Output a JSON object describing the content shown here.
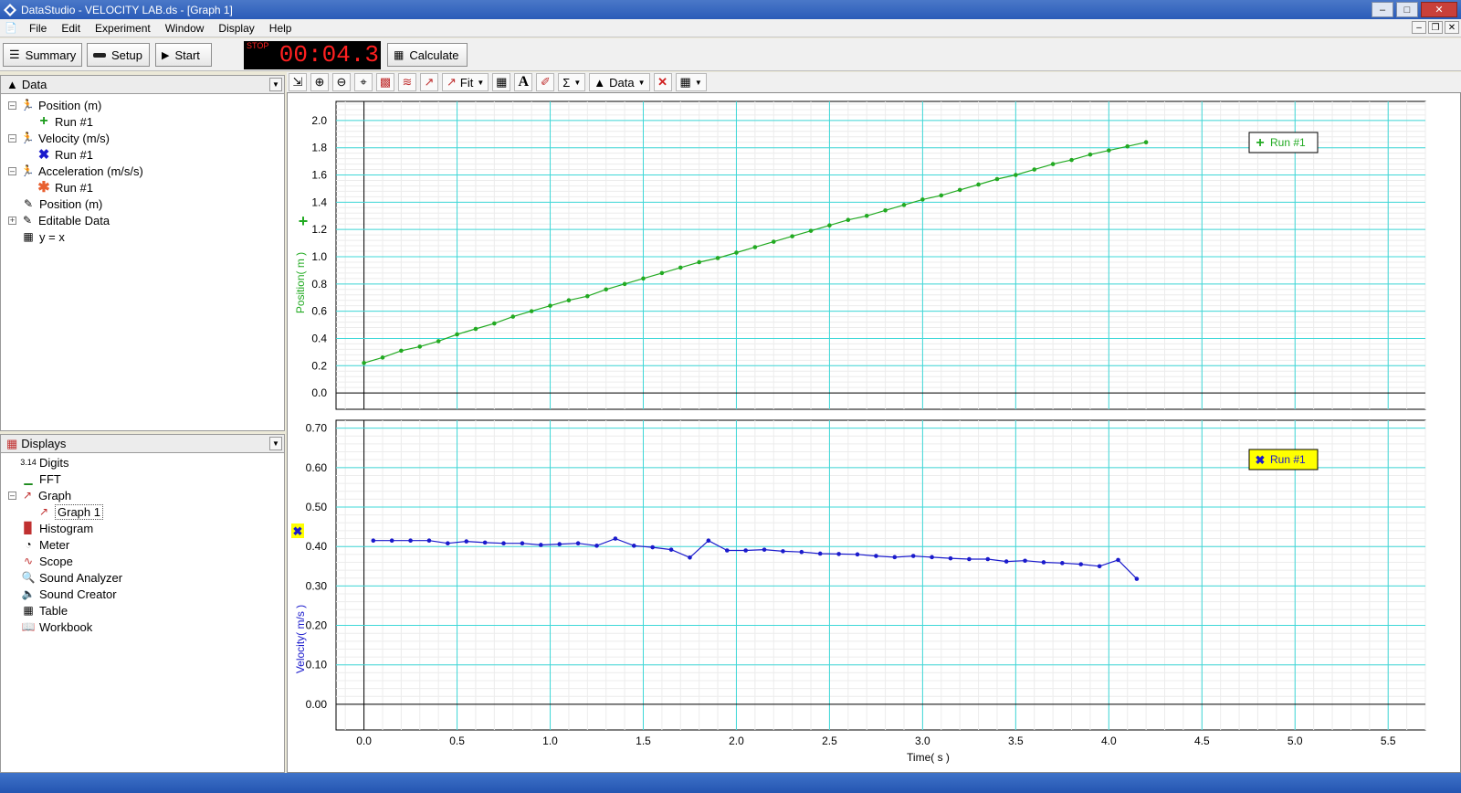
{
  "window": {
    "title": "DataStudio - VELOCITY LAB.ds - [Graph 1]"
  },
  "menu": [
    "File",
    "Edit",
    "Experiment",
    "Window",
    "Display",
    "Help"
  ],
  "toolbar": {
    "summary": "Summary",
    "setup": "Setup",
    "start": "Start",
    "timer_label": "STOP",
    "timer": "00:04.3",
    "calculate": "Calculate"
  },
  "data_panel": {
    "title": "Data",
    "items": [
      {
        "label": "Position (m)",
        "icon": "motion-sensor-icon"
      },
      {
        "label": "Run #1",
        "icon": "green-plus-icon"
      },
      {
        "label": "Velocity (m/s)",
        "icon": "motion-sensor-icon"
      },
      {
        "label": "Run #1",
        "icon": "blue-x-icon"
      },
      {
        "label": "Acceleration (m/s/s)",
        "icon": "motion-sensor-icon"
      },
      {
        "label": "Run #1",
        "icon": "orange-asterisk-icon"
      },
      {
        "label": "Position (m)",
        "icon": "pencil-icon"
      },
      {
        "label": "Editable Data",
        "icon": "pencil-icon"
      },
      {
        "label": "y = x",
        "icon": "calculator-icon"
      }
    ]
  },
  "displays_panel": {
    "title": "Displays",
    "items": [
      {
        "label": "Digits",
        "icon": "digits-icon"
      },
      {
        "label": "FFT",
        "icon": "fft-icon"
      },
      {
        "label": "Graph",
        "icon": "graph-icon"
      },
      {
        "label": "Graph 1",
        "icon": "graph-icon"
      },
      {
        "label": "Histogram",
        "icon": "histogram-icon"
      },
      {
        "label": "Meter",
        "icon": "meter-icon"
      },
      {
        "label": "Scope",
        "icon": "scope-icon"
      },
      {
        "label": "Sound Analyzer",
        "icon": "sound-analyzer-icon"
      },
      {
        "label": "Sound Creator",
        "icon": "speaker-icon"
      },
      {
        "label": "Table",
        "icon": "table-icon"
      },
      {
        "label": "Workbook",
        "icon": "workbook-icon"
      }
    ]
  },
  "graph_toolbar": {
    "fit": "Fit",
    "data": "Data"
  },
  "colors": {
    "position": "#22aa22",
    "velocity": "#1a1acc",
    "grid": "#3fd8d8",
    "legend_velocity_bg": "#ffff00"
  },
  "chart_data": [
    {
      "type": "line",
      "ylabel": "Position( m )",
      "xlabel": "",
      "xlim": [
        -0.15,
        5.7
      ],
      "ylim": [
        -0.12,
        2.14
      ],
      "xticks": [
        0.0,
        0.5,
        1.0,
        1.5,
        2.0,
        2.5,
        3.0,
        3.5,
        4.0,
        4.5,
        5.0,
        5.5
      ],
      "yticks": [
        "0.0",
        "0.2",
        "0.4",
        "0.6",
        "0.8",
        "1.0",
        "1.2",
        "1.4",
        "1.6",
        "1.8",
        "2.0"
      ],
      "legend": "Run #1",
      "series": [
        {
          "name": "Run #1",
          "x": [
            0.0,
            0.1,
            0.2,
            0.3,
            0.4,
            0.5,
            0.6,
            0.7,
            0.8,
            0.9,
            1.0,
            1.1,
            1.2,
            1.3,
            1.4,
            1.5,
            1.6,
            1.7,
            1.8,
            1.9,
            2.0,
            2.1,
            2.2,
            2.3,
            2.4,
            2.5,
            2.6,
            2.7,
            2.8,
            2.9,
            3.0,
            3.1,
            3.2,
            3.3,
            3.4,
            3.5,
            3.6,
            3.7,
            3.8,
            3.9,
            4.0,
            4.1,
            4.2
          ],
          "y": [
            0.22,
            0.26,
            0.31,
            0.34,
            0.38,
            0.43,
            0.47,
            0.51,
            0.56,
            0.6,
            0.64,
            0.68,
            0.71,
            0.76,
            0.8,
            0.84,
            0.88,
            0.92,
            0.96,
            0.99,
            1.03,
            1.07,
            1.11,
            1.15,
            1.19,
            1.23,
            1.27,
            1.3,
            1.34,
            1.38,
            1.42,
            1.45,
            1.49,
            1.53,
            1.57,
            1.6,
            1.64,
            1.68,
            1.71,
            1.75,
            1.78,
            1.81,
            1.84
          ]
        }
      ]
    },
    {
      "type": "line",
      "ylabel": "Velocity( m/s )",
      "xlabel": "Time( s )",
      "xlim": [
        -0.15,
        5.7
      ],
      "ylim": [
        -0.065,
        0.72
      ],
      "xticks": [
        0.0,
        0.5,
        1.0,
        1.5,
        2.0,
        2.5,
        3.0,
        3.5,
        4.0,
        4.5,
        5.0,
        5.5
      ],
      "yticks": [
        "0.00",
        "0.10",
        "0.20",
        "0.30",
        "0.40",
        "0.50",
        "0.60",
        "0.70"
      ],
      "legend": "Run #1",
      "series": [
        {
          "name": "Run #1",
          "x": [
            0.05,
            0.15,
            0.25,
            0.35,
            0.45,
            0.55,
            0.65,
            0.75,
            0.85,
            0.95,
            1.05,
            1.15,
            1.25,
            1.35,
            1.45,
            1.55,
            1.65,
            1.75,
            1.85,
            1.95,
            2.05,
            2.15,
            2.25,
            2.35,
            2.45,
            2.55,
            2.65,
            2.75,
            2.85,
            2.95,
            3.05,
            3.15,
            3.25,
            3.35,
            3.45,
            3.55,
            3.65,
            3.75,
            3.85,
            3.95,
            4.05,
            4.15
          ],
          "y": [
            0.415,
            0.415,
            0.415,
            0.415,
            0.408,
            0.413,
            0.41,
            0.408,
            0.408,
            0.404,
            0.406,
            0.408,
            0.402,
            0.42,
            0.402,
            0.398,
            0.392,
            0.372,
            0.415,
            0.39,
            0.39,
            0.392,
            0.388,
            0.386,
            0.382,
            0.381,
            0.38,
            0.376,
            0.373,
            0.376,
            0.373,
            0.37,
            0.368,
            0.368,
            0.362,
            0.364,
            0.36,
            0.358,
            0.355,
            0.35,
            0.366,
            0.318
          ]
        }
      ]
    }
  ]
}
